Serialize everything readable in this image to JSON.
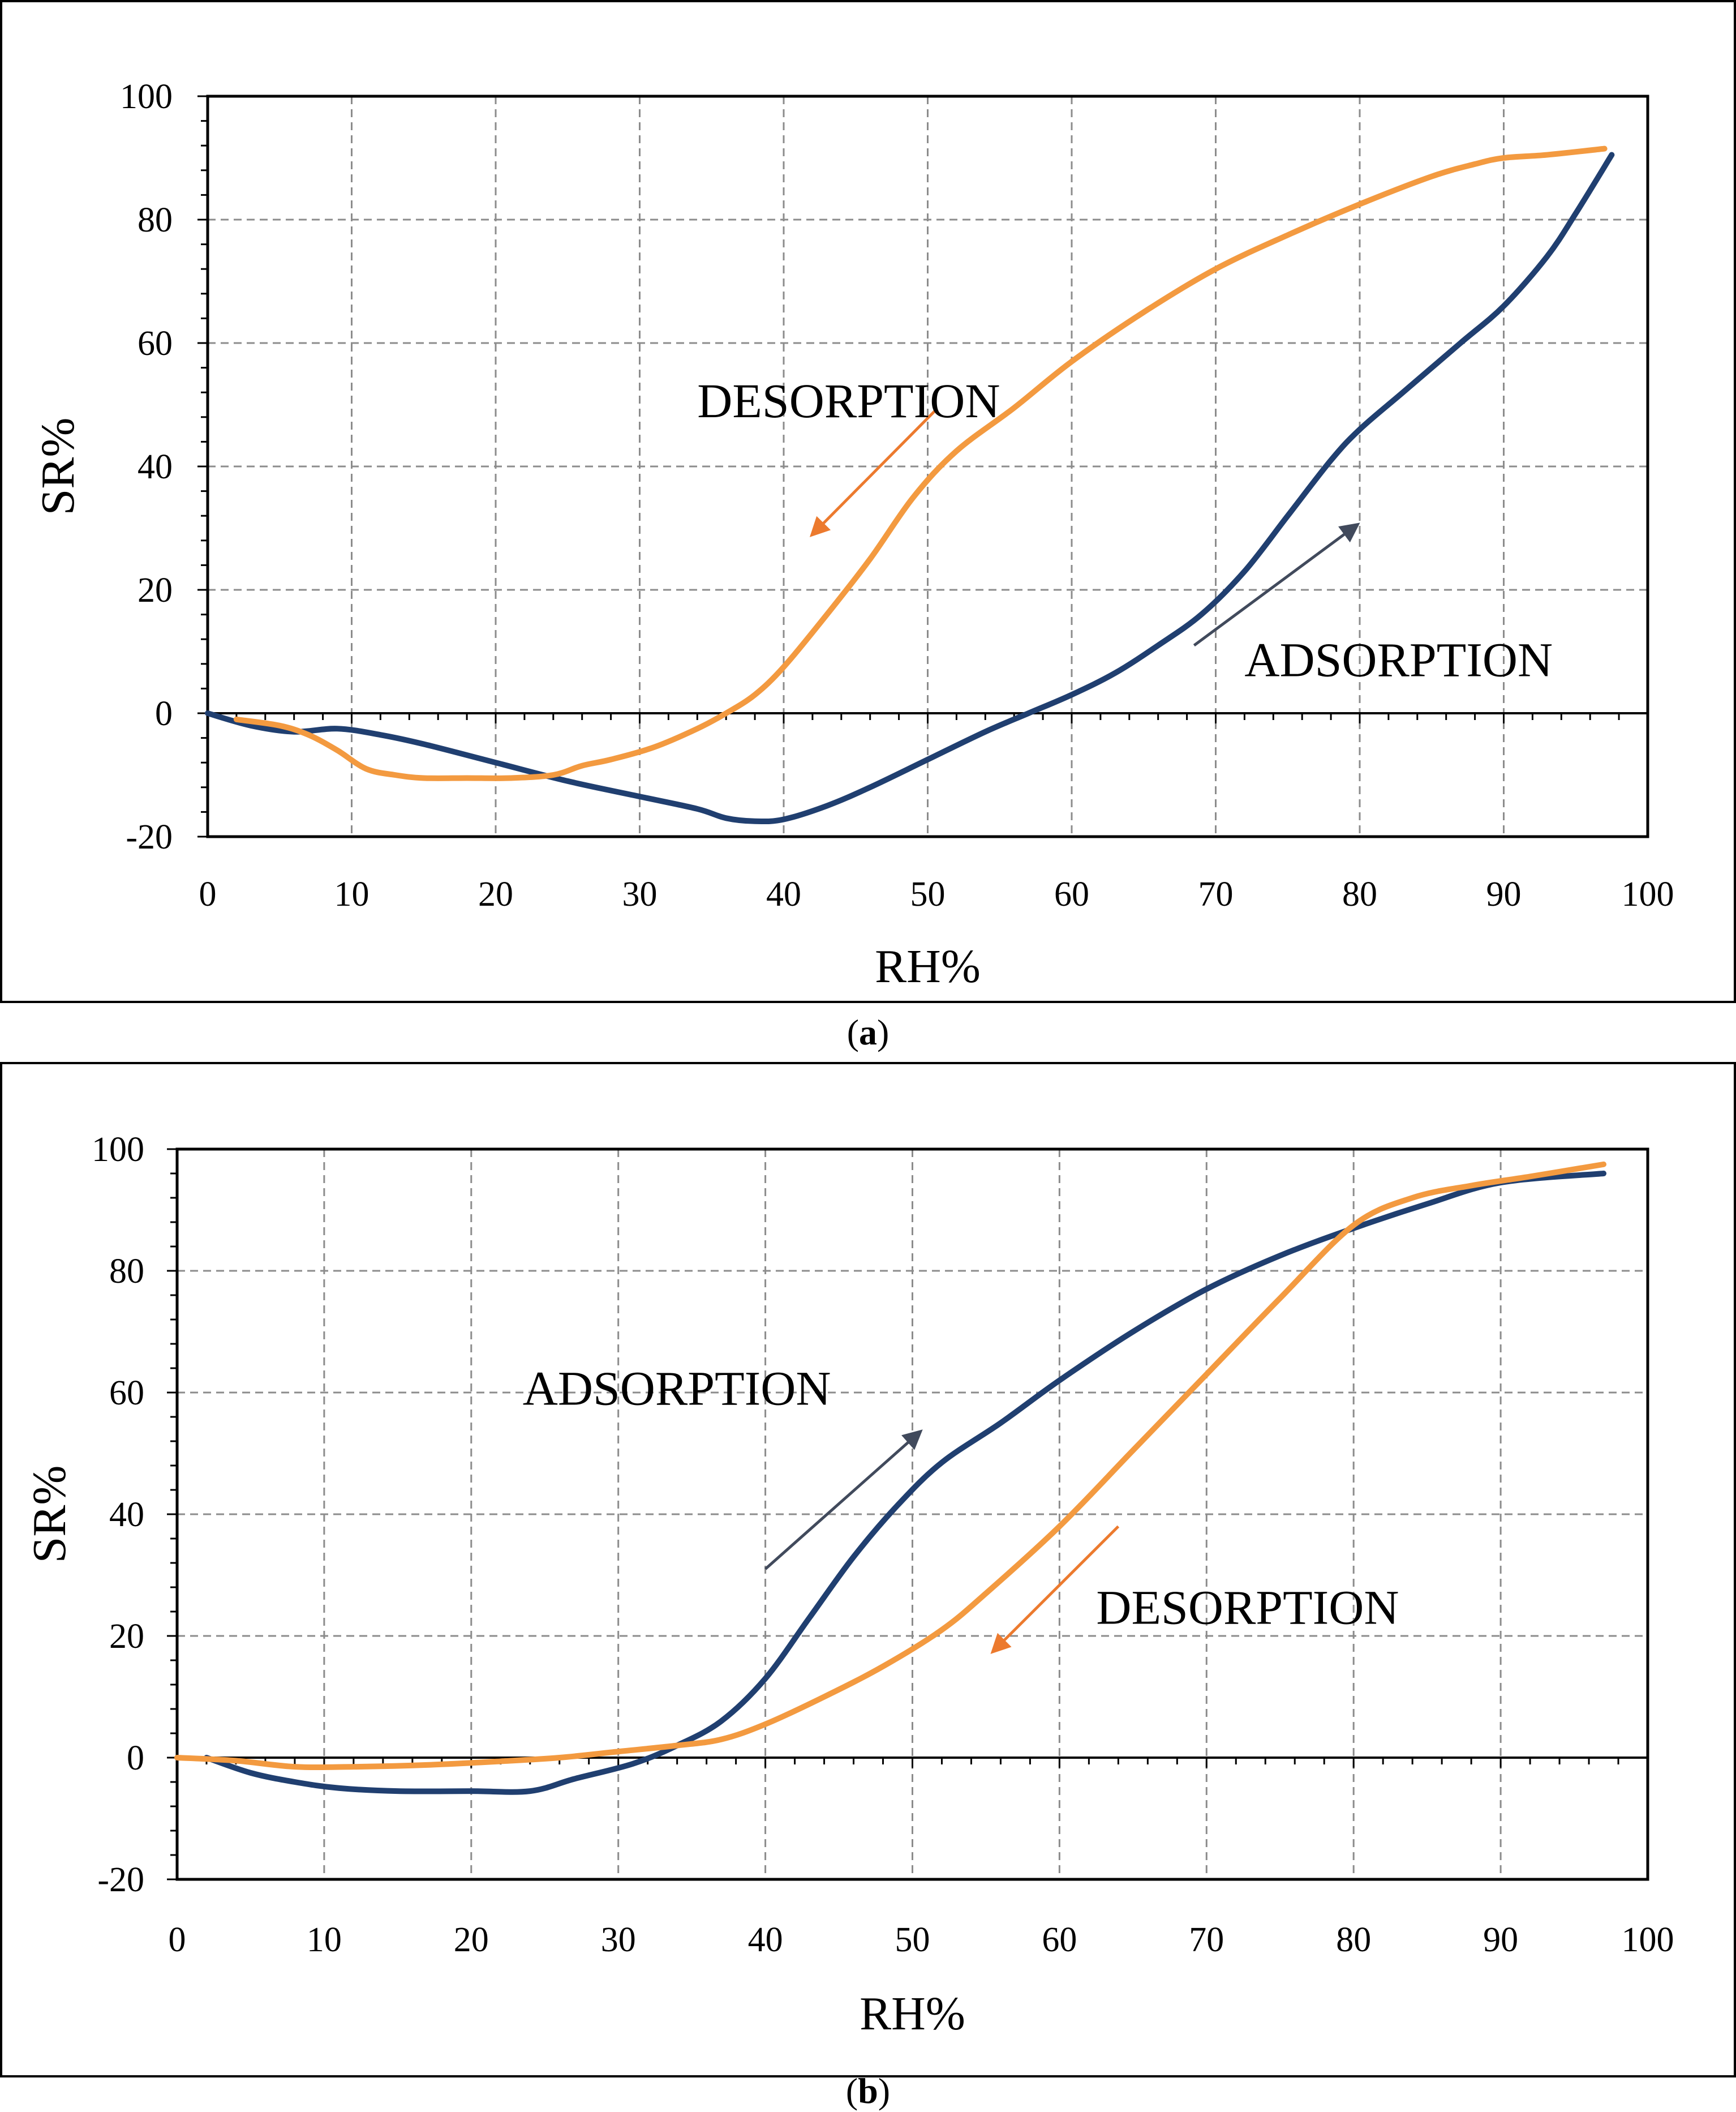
{
  "colors": {
    "adsorption": "#203f70",
    "desorption": "#f39a40",
    "desorption_arrow": "#ec7a2e",
    "adsorption_arrow": "#414a5c"
  },
  "chart_data": [
    {
      "type": "line",
      "caption_open": "(",
      "caption_letter": "a",
      "caption_close": ")",
      "xlabel": "RH%",
      "ylabel": "SR%",
      "xlim": [
        0,
        100
      ],
      "ylim": [
        -20,
        100
      ],
      "xticks": [
        0,
        10,
        20,
        30,
        40,
        50,
        60,
        70,
        80,
        90,
        100
      ],
      "xtick_labels": [
        "0",
        "10",
        "20",
        "30",
        "40",
        "50",
        "60",
        "70",
        "80",
        "90",
        "100"
      ],
      "yticks": [
        -20,
        0,
        20,
        40,
        60,
        80,
        100
      ],
      "ytick_labels": [
        "-20",
        "0",
        "20",
        "40",
        "60",
        "80",
        "100"
      ],
      "grid": true,
      "series": [
        {
          "name": "ADSORPTION",
          "color": "#203f70",
          "x": [
            0,
            3,
            6,
            9,
            12,
            15,
            20,
            25,
            30,
            34,
            36,
            38,
            40,
            43,
            46,
            50,
            54,
            57,
            60,
            63,
            66,
            69,
            72,
            75,
            78,
            80,
            83,
            87,
            90,
            93,
            95,
            97.5
          ],
          "y": [
            0,
            -2,
            -3,
            -2.5,
            -3.5,
            -5,
            -8,
            -11,
            -13.5,
            -15.5,
            -17,
            -17.5,
            -17.2,
            -15,
            -12,
            -7.5,
            -3,
            0,
            3,
            6.5,
            11,
            16,
            23,
            32,
            41,
            46,
            52,
            60,
            66,
            74,
            81,
            90.5
          ]
        },
        {
          "name": "DESORPTION",
          "color": "#f39a40",
          "x": [
            2,
            5,
            7,
            9,
            11,
            13,
            15,
            18,
            21,
            24,
            26,
            28,
            31,
            34,
            36,
            38,
            40,
            43,
            46,
            49,
            52,
            56,
            60,
            65,
            70,
            75,
            80,
            85,
            88,
            90,
            93,
            97
          ],
          "y": [
            -1,
            -2,
            -3.5,
            -6,
            -9,
            -10,
            -10.5,
            -10.5,
            -10.5,
            -10,
            -8.5,
            -7.5,
            -5.5,
            -2.5,
            0,
            3,
            7.5,
            16,
            25,
            35,
            42.5,
            49.5,
            57,
            65,
            72,
            77.5,
            82.5,
            87,
            89,
            90,
            90.5,
            91.5
          ]
        }
      ],
      "annotations": [
        {
          "text": "DESORPTION",
          "x": 34,
          "y": 48,
          "arrow_from": [
            50.5,
            49
          ],
          "arrow_to": [
            42,
            29
          ],
          "arrow_color": "#ec7a2e"
        },
        {
          "text": "ADSORPTION",
          "x": 72,
          "y": 6,
          "arrow_from": [
            68.5,
            11
          ],
          "arrow_to": [
            79.8,
            30.5
          ],
          "arrow_color": "#414a5c"
        }
      ]
    },
    {
      "type": "line",
      "caption_open": "(",
      "caption_letter": "b",
      "caption_close": ")",
      "xlabel": "RH%",
      "ylabel": "SR%",
      "xlim": [
        0,
        100
      ],
      "ylim": [
        -20,
        100
      ],
      "xticks": [
        0,
        10,
        20,
        30,
        40,
        50,
        60,
        70,
        80,
        90,
        100
      ],
      "xtick_labels": [
        "0",
        "10",
        "20",
        "30",
        "40",
        "50",
        "60",
        "70",
        "80",
        "90",
        "100"
      ],
      "yticks": [
        -20,
        0,
        20,
        40,
        60,
        80,
        100
      ],
      "ytick_labels": [
        "-20",
        "0",
        "20",
        "40",
        "60",
        "80",
        "100"
      ],
      "grid": true,
      "series": [
        {
          "name": "ADSORPTION",
          "color": "#203f70",
          "x": [
            2,
            5,
            8,
            11,
            15,
            20,
            24,
            27,
            31,
            34,
            37,
            40,
            43,
            46,
            49,
            52,
            56,
            60,
            65,
            70,
            75,
            80,
            85,
            90,
            97
          ],
          "y": [
            0,
            -2.5,
            -4,
            -5,
            -5.5,
            -5.5,
            -5.5,
            -3.5,
            -1,
            2,
            6,
            13,
            23,
            33,
            41.5,
            48.5,
            55,
            62,
            70,
            77,
            82.5,
            87,
            91,
            94.5,
            96
          ]
        },
        {
          "name": "DESORPTION",
          "color": "#f39a40",
          "x": [
            0,
            4,
            8,
            12,
            17,
            22,
            26,
            30,
            34,
            37,
            40,
            44,
            48,
            52,
            55,
            60,
            65,
            70,
            75,
            80,
            84,
            88,
            92,
            97
          ],
          "y": [
            0,
            -0.5,
            -1.5,
            -1.5,
            -1.2,
            -0.6,
            0,
            1,
            2,
            3,
            5.5,
            10,
            15,
            21,
            27,
            38,
            50.5,
            63,
            75.5,
            87.5,
            92,
            94,
            95.5,
            97.5
          ]
        }
      ],
      "annotations": [
        {
          "text": "ADSORPTION",
          "x": 23.5,
          "y": 58,
          "arrow_from": [
            40,
            31
          ],
          "arrow_to": [
            50.5,
            53.5
          ],
          "arrow_color": "#414a5c"
        },
        {
          "text": "DESORPTION",
          "x": 62.5,
          "y": 22,
          "arrow_from": [
            64,
            38
          ],
          "arrow_to": [
            55.5,
            17.5
          ],
          "arrow_color": "#ec7a2e"
        }
      ]
    }
  ]
}
